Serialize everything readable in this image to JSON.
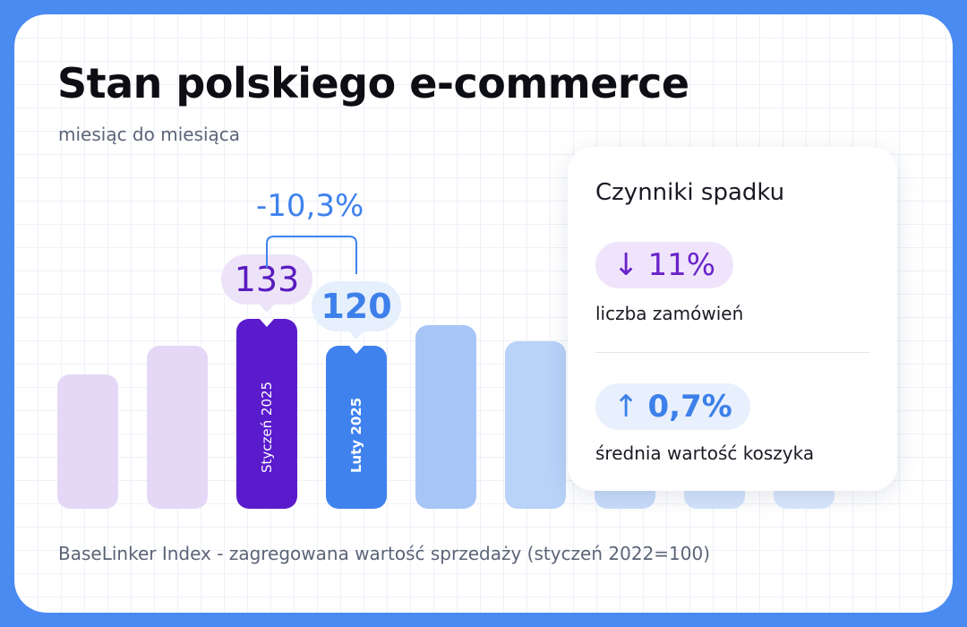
{
  "title": "Stan polskiego e-commerce",
  "subtitle": "miesiąc do miesiąca",
  "footer": "BaseLinker Index - zagregowana wartość sprzedaży (styczeń 2022=100)",
  "chart_data": {
    "type": "bar",
    "categories": [
      "",
      "",
      "Styczeń 2025",
      "Luty 2025",
      "",
      "",
      "",
      "",
      ""
    ],
    "values": [
      106,
      120,
      133,
      120,
      130,
      122,
      109,
      109,
      109
    ],
    "highlighted": [
      {
        "label": "Styczeń 2025",
        "value": "133",
        "color": "#5a1bcc"
      },
      {
        "label": "Luty 2025",
        "value": "120",
        "color": "#3f82ee"
      }
    ],
    "bar_colors": [
      "#e5d8f7",
      "#e5d8f7",
      "#5a1bcc",
      "#3f82ee",
      "#a7c6f7",
      "#b9d2f8",
      "#c9dcfa",
      "#d3e3fb",
      "#d9e7fc"
    ],
    "annotation": "-10,3%"
  },
  "panel": {
    "title": "Czynniki spadku",
    "factors": [
      {
        "arrow": "↓",
        "value": "11%",
        "label": "liczba zamówień",
        "color": "#6a22c9"
      },
      {
        "arrow": "↑",
        "value": "0,7%",
        "label": "średnia wartość koszyka",
        "color": "#3d80ea"
      }
    ]
  }
}
